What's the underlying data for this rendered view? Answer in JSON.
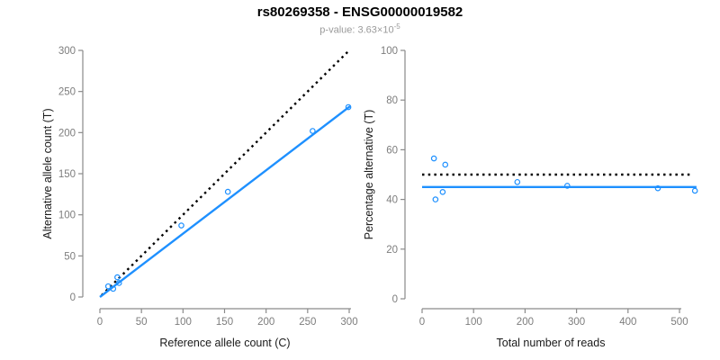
{
  "header": {
    "title": "rs80269358 - ENSG00000019582",
    "subtitle_label": "p-value: ",
    "p_value_base": "3.63×10",
    "p_value_exponent": "-5"
  },
  "colors": {
    "accent_blue": "#1E90FF",
    "dotted_black": "#000000",
    "axis_gray": "#8a8a8a",
    "tick_label_gray": "#7d7d7d",
    "axis_title_black": "#1a1a1a"
  },
  "chart_data": [
    {
      "type": "scatter",
      "panel": "counts",
      "xlabel": "Reference allele count (C)",
      "ylabel": "Alternative allele count (T)",
      "xlim": [
        0,
        300
      ],
      "ylim": [
        0,
        300
      ],
      "xticks": [
        0,
        50,
        100,
        150,
        200,
        250,
        300
      ],
      "yticks": [
        0,
        50,
        100,
        150,
        200,
        250,
        300
      ],
      "grid": false,
      "legend": "none",
      "points": [
        [
          10,
          13
        ],
        [
          16,
          10
        ],
        [
          21,
          24
        ],
        [
          23,
          17
        ],
        [
          98,
          87
        ],
        [
          154,
          128
        ],
        [
          256,
          202
        ],
        [
          299,
          231
        ]
      ],
      "lines": [
        {
          "name": "identity-line",
          "style": "dotted",
          "color": "#000000",
          "from": [
            2,
            2
          ],
          "to": [
            298,
            298
          ]
        },
        {
          "name": "regression-line",
          "style": "solid",
          "color": "#1E90FF",
          "from": [
            0,
            0
          ],
          "to": [
            301,
            232
          ]
        }
      ]
    },
    {
      "type": "scatter",
      "panel": "percentage",
      "xlabel": "Total number of reads",
      "ylabel": "Percentage alternative (T)",
      "xlim": [
        0,
        500
      ],
      "ylim": [
        0,
        100
      ],
      "xticks": [
        0,
        100,
        200,
        300,
        400,
        500
      ],
      "yticks": [
        0,
        20,
        40,
        60,
        80,
        100
      ],
      "grid": false,
      "legend": "none",
      "points": [
        [
          23,
          56.5
        ],
        [
          26,
          40
        ],
        [
          45,
          54
        ],
        [
          40,
          43
        ],
        [
          185,
          47
        ],
        [
          282,
          45.5
        ],
        [
          458,
          44.5
        ],
        [
          530,
          43.5
        ]
      ],
      "lines": [
        {
          "name": "null-50pct-line",
          "style": "dotted",
          "color": "#000000",
          "from": [
            0,
            50
          ],
          "to": [
            527,
            50
          ]
        },
        {
          "name": "mean-percentage-line",
          "style": "solid",
          "color": "#1E90FF",
          "from": [
            0,
            45
          ],
          "to": [
            533,
            45
          ]
        }
      ]
    }
  ]
}
